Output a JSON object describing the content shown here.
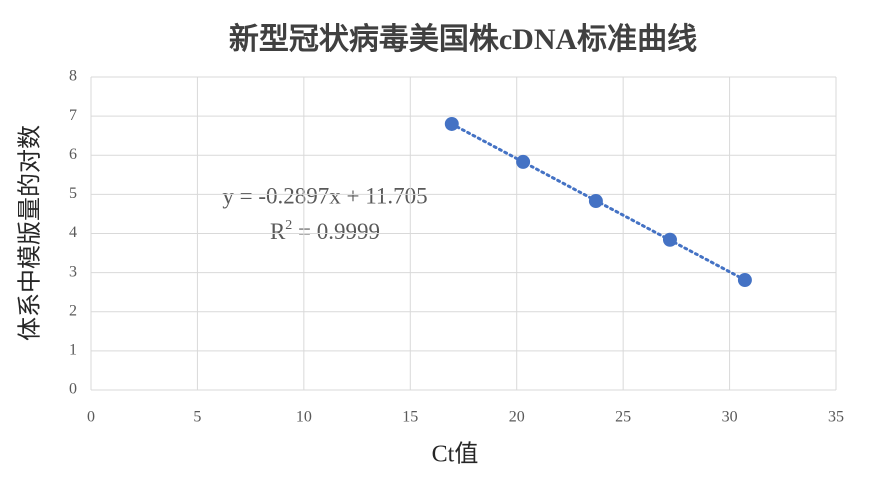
{
  "chart_data": {
    "type": "scatter",
    "title": "新型冠状病毒美国株cDNA标准曲线",
    "x_label": "Ct值",
    "y_label": "体系中模版量的对数",
    "series": [
      {
        "name": "cDNA",
        "color": "#4472c4",
        "x": [
          16.95,
          20.3,
          23.72,
          27.2,
          30.72
        ],
        "values": [
          6.8,
          5.83,
          4.83,
          3.84,
          2.81
        ]
      }
    ],
    "xlim": [
      0,
      35
    ],
    "xticks": [
      0,
      5,
      10,
      15,
      20,
      25,
      30,
      35
    ],
    "ylim": [
      0,
      8
    ],
    "yticks": [
      0,
      1,
      2,
      3,
      4,
      5,
      6,
      7,
      8
    ],
    "grid": true,
    "trendline": {
      "equation": "y = -0.2897x + 11.705",
      "r2_base": "R",
      "r2_sup": "2",
      "r2_text": " = 0.9999"
    }
  }
}
